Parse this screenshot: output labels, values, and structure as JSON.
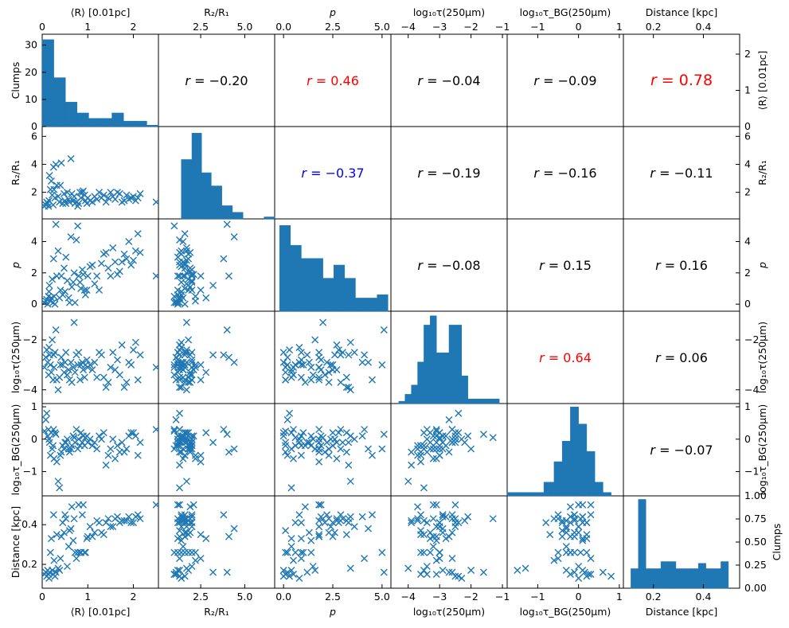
{
  "chart_data": {
    "type": "pairplot",
    "variables": [
      {
        "key": "R",
        "label_top": "⟨R⟩ [0.01pc]",
        "label_bottom": "⟨R⟩ [0.01pc]",
        "label_left": "",
        "label_right": "⟨R⟩ [0.01pc]",
        "range": [
          0,
          2.55
        ],
        "ticks": [
          0,
          1,
          2
        ],
        "tick_labels": [
          "0",
          "1",
          "2"
        ]
      },
      {
        "key": "R2R1",
        "label_top": "R₂/R₁",
        "label_bottom": "R₂/R₁",
        "label_left": "R₂/R₁",
        "label_right": "R₂/R₁",
        "range": [
          0.1,
          6.7
        ],
        "ticks": [
          2.5,
          5.0
        ],
        "tick_labels": [
          "2.5",
          "5.0"
        ],
        "y_ticks": [
          2,
          4,
          6
        ],
        "y_tick_labels": [
          "2",
          "4",
          "6"
        ]
      },
      {
        "key": "p",
        "label_top": "p",
        "label_bottom": "p",
        "label_left": "p",
        "label_right": "p",
        "range": [
          -0.45,
          5.45
        ],
        "ticks": [
          0,
          2.5,
          5
        ],
        "tick_labels": [
          "0.0",
          "2.5",
          "5.0"
        ],
        "y_ticks": [
          0,
          2,
          4
        ],
        "y_tick_labels": [
          "0",
          "2",
          "4"
        ]
      },
      {
        "key": "tau",
        "label_top": "log₁₀τ(250µm)",
        "label_bottom": "log₁₀τ(250µm)",
        "label_left": "log₁₀τ(250µm)",
        "label_right": "log₁₀τ(250µm)",
        "range": [
          -4.55,
          -0.85
        ],
        "ticks": [
          -4,
          -3,
          -2,
          -1
        ],
        "tick_labels": [
          "−4",
          "−3",
          "−2",
          "−1"
        ],
        "y_ticks": [
          -4,
          -2
        ],
        "y_tick_labels": [
          "−4",
          "−2"
        ]
      },
      {
        "key": "taubg",
        "label_top": "log₁₀τ_BG(250µm)",
        "label_bottom": "log₁₀τ_BG(250µm)",
        "label_left": "log₁₀τ_BG(250µm)",
        "label_right": "log₁₀τ_BG(250µm)",
        "range": [
          -1.75,
          1.1
        ],
        "ticks": [
          -1,
          0,
          1
        ],
        "tick_labels": [
          "−1",
          "0",
          "1"
        ],
        "y_ticks": [
          -1,
          0,
          1
        ],
        "y_tick_labels": [
          "−1",
          "0",
          "1"
        ]
      },
      {
        "key": "dist",
        "label_top": "Distance [kpc]",
        "label_bottom": "Distance [kpc]",
        "label_left": "Distance [kpc]",
        "label_right": "",
        "range": [
          0.08,
          0.545
        ],
        "ticks": [
          0.2,
          0.4
        ],
        "tick_labels": [
          "0.2",
          "0.4"
        ],
        "y_ticks": [
          0.2,
          0.4
        ],
        "y_tick_labels": [
          "0.2",
          "0.4"
        ]
      }
    ],
    "first_row_y": {
      "label_left": "Clumps",
      "range": [
        0,
        34
      ],
      "ticks": [
        0,
        10,
        20,
        30
      ],
      "tick_labels": [
        "0",
        "10",
        "20",
        "30"
      ],
      "right_ticks": [
        0,
        1,
        2
      ],
      "right_tick_labels": [
        "0",
        "1",
        "2"
      ]
    },
    "last_row_right": {
      "label_right": "Clumps",
      "range": [
        0,
        1
      ],
      "ticks": [
        0,
        0.25,
        0.5,
        0.75,
        1.0
      ],
      "tick_labels": [
        "0.00",
        "0.25",
        "0.50",
        "0.75",
        "1.00"
      ]
    },
    "correlations": [
      {
        "row": 0,
        "col": 1,
        "r": "−0.20",
        "color": "#000000",
        "big": false
      },
      {
        "row": 0,
        "col": 2,
        "r": "0.46",
        "color": "#ff0000",
        "big": false
      },
      {
        "row": 0,
        "col": 3,
        "r": "−0.04",
        "color": "#000000",
        "big": false
      },
      {
        "row": 0,
        "col": 4,
        "r": "−0.09",
        "color": "#000000",
        "big": false
      },
      {
        "row": 0,
        "col": 5,
        "r": "0.78",
        "color": "#ff0000",
        "big": true
      },
      {
        "row": 1,
        "col": 2,
        "r": "−0.37",
        "color": "#0000ff",
        "big": false
      },
      {
        "row": 1,
        "col": 3,
        "r": "−0.19",
        "color": "#000000",
        "big": false
      },
      {
        "row": 1,
        "col": 4,
        "r": "−0.16",
        "color": "#000000",
        "big": false
      },
      {
        "row": 1,
        "col": 5,
        "r": "−0.11",
        "color": "#000000",
        "big": false
      },
      {
        "row": 2,
        "col": 3,
        "r": "−0.08",
        "color": "#000000",
        "big": false
      },
      {
        "row": 2,
        "col": 4,
        "r": "0.15",
        "color": "#000000",
        "big": false
      },
      {
        "row": 2,
        "col": 5,
        "r": "0.16",
        "color": "#000000",
        "big": false
      },
      {
        "row": 3,
        "col": 4,
        "r": "0.64",
        "color": "#ff0000",
        "big": false
      },
      {
        "row": 3,
        "col": 5,
        "r": "0.06",
        "color": "#000000",
        "big": false
      },
      {
        "row": 4,
        "col": 5,
        "r": "−0.07",
        "color": "#000000",
        "big": false
      }
    ],
    "histograms": [
      {
        "var": "R",
        "bins": [
          0,
          0.255,
          0.51,
          0.765,
          1.02,
          1.275,
          1.53,
          1.785,
          2.04,
          2.295,
          2.55
        ],
        "counts": [
          32,
          18,
          9,
          5,
          3,
          3,
          5,
          2,
          2,
          0.5
        ],
        "ymax": 34
      },
      {
        "var": "R2R1",
        "bins": [
          0.1,
          0.75,
          1.4,
          2.0,
          2.55,
          3.1,
          3.7,
          4.3,
          4.9,
          5.5,
          6.1,
          6.7
        ],
        "counts": [
          0,
          0,
          9,
          13,
          7,
          5,
          2,
          1,
          0,
          0,
          0.3
        ],
        "ymax": 14
      },
      {
        "var": "p",
        "bins": [
          -0.2,
          0.35,
          0.9,
          1.45,
          2.0,
          2.55,
          3.1,
          3.65,
          4.2,
          4.75,
          5.3
        ],
        "counts": [
          13,
          10,
          8,
          8,
          5,
          7,
          5,
          2,
          2,
          2.5
        ],
        "ymax": 14
      },
      {
        "var": "tau",
        "bins": [
          -4.3,
          -4.1,
          -3.9,
          -3.7,
          -3.5,
          -3.3,
          -3.1,
          -2.9,
          -2.7,
          -2.5,
          -2.3,
          -2.1,
          -1.9,
          -1.7,
          -1.5,
          -1.3,
          -1.1
        ],
        "counts": [
          0.5,
          2,
          4,
          9,
          17,
          19,
          11,
          11,
          17,
          17,
          6,
          1,
          1,
          1,
          1,
          1
        ],
        "ymax": 20
      },
      {
        "var": "taubg",
        "bins": [
          -1.75,
          -1.45,
          -1.15,
          -0.85,
          -0.6,
          -0.4,
          -0.2,
          0.0,
          0.2,
          0.4,
          0.6,
          0.8,
          1.1
        ],
        "counts": [
          1,
          1,
          1,
          4,
          10,
          16,
          26,
          21,
          13,
          4,
          1,
          0
        ],
        "ymax": 27
      },
      {
        "var": "dist",
        "bins": [
          0.11,
          0.14,
          0.17,
          0.2,
          0.23,
          0.26,
          0.29,
          0.32,
          0.35,
          0.38,
          0.41,
          0.44,
          0.47,
          0.5
        ],
        "counts": [
          0.22,
          1.0,
          0.22,
          0.22,
          0.3,
          0.3,
          0.22,
          0.22,
          0.22,
          0.28,
          0.22,
          0.22,
          0.3,
          0.09
        ],
        "ymax": 1.04
      }
    ],
    "points": [
      [
        0.05,
        1.0,
        0.1,
        -3.1,
        0.25,
        0.15
      ],
      [
        0.08,
        1.1,
        0.2,
        -2.7,
        0.6,
        0.16
      ],
      [
        0.1,
        1.3,
        0.3,
        -2.4,
        0.8,
        0.14
      ],
      [
        0.12,
        1.2,
        0.0,
        -2.9,
        0.1,
        0.17
      ],
      [
        0.14,
        1.0,
        0.5,
        -3.4,
        0.3,
        0.15
      ],
      [
        0.15,
        1.4,
        0.8,
        -2.3,
        0.0,
        0.13
      ],
      [
        0.16,
        3.2,
        1.2,
        -2.6,
        -0.1,
        0.16
      ],
      [
        0.18,
        2.2,
        0.2,
        -3.0,
        -0.5,
        0.26
      ],
      [
        0.2,
        2.8,
        0.4,
        -3.3,
        0.2,
        0.33
      ],
      [
        0.22,
        1.8,
        1.6,
        -2.0,
        -0.3,
        0.17
      ],
      [
        0.24,
        1.1,
        0.1,
        -3.6,
        -0.2,
        0.15
      ],
      [
        0.25,
        3.8,
        2.9,
        -2.6,
        0.3,
        0.45
      ],
      [
        0.26,
        2.2,
        0.5,
        -3.1,
        -0.6,
        0.22
      ],
      [
        0.28,
        1.6,
        0.0,
        -2.5,
        0.2,
        0.14
      ],
      [
        0.3,
        4.0,
        5.1,
        -1.6,
        0.15,
        0.16
      ],
      [
        0.32,
        2.5,
        1.8,
        -3.6,
        -0.7,
        0.35
      ],
      [
        0.35,
        1.7,
        3.4,
        -4.0,
        -1.3,
        0.18
      ],
      [
        0.38,
        1.3,
        0.4,
        -3.5,
        -1.5,
        0.17
      ],
      [
        0.4,
        2.5,
        0.9,
        -3.0,
        -0.5,
        0.23
      ],
      [
        0.42,
        4.1,
        1.8,
        -2.7,
        -0.4,
        0.34
      ],
      [
        0.45,
        1.2,
        0.6,
        -3.0,
        -0.2,
        0.41
      ],
      [
        0.48,
        1.9,
        2.3,
        -3.3,
        -0.3,
        0.36
      ],
      [
        0.5,
        1.4,
        0.8,
        -2.9,
        -0.1,
        0.45
      ],
      [
        0.52,
        1.2,
        3.0,
        -2.5,
        -0.1,
        0.43
      ],
      [
        0.55,
        2.0,
        1.5,
        -3.4,
        0.0,
        0.19
      ],
      [
        0.58,
        1.5,
        0.4,
        -3.2,
        -0.3,
        0.29
      ],
      [
        0.6,
        1.3,
        0.1,
        -3.6,
        -0.4,
        0.37
      ],
      [
        0.63,
        4.4,
        4.3,
        -2.9,
        -0.3,
        0.38
      ],
      [
        0.65,
        1.9,
        1.1,
        -3.7,
        -0.2,
        0.49
      ],
      [
        0.68,
        1.4,
        1.4,
        -3.1,
        0.1,
        0.32
      ],
      [
        0.7,
        1.7,
        2.0,
        -1.3,
        0.05,
        0.43
      ],
      [
        0.72,
        1.2,
        0.1,
        -3.3,
        -0.1,
        0.26
      ],
      [
        0.75,
        1.3,
        4.1,
        -2.6,
        0.3,
        0.23
      ],
      [
        0.78,
        1.0,
        5.0,
        -3.0,
        -0.3,
        0.26
      ],
      [
        0.8,
        1.2,
        1.8,
        -2.5,
        0.0,
        0.5
      ],
      [
        0.83,
        2.0,
        1.4,
        -3.6,
        -0.2,
        0.26
      ],
      [
        0.85,
        1.6,
        1.0,
        -3.0,
        0.2,
        0.26
      ],
      [
        0.88,
        2.0,
        2.2,
        -2.9,
        -0.1,
        0.45
      ],
      [
        0.9,
        2.1,
        1.9,
        -3.2,
        0.1,
        0.5
      ],
      [
        0.93,
        1.8,
        0.9,
        -3.5,
        -0.2,
        0.26
      ],
      [
        0.95,
        1.4,
        0.6,
        -3.0,
        0.05,
        0.26
      ],
      [
        0.98,
        1.2,
        0.9,
        -2.8,
        0.1,
        0.33
      ],
      [
        1.0,
        1.6,
        1.8,
        -3.1,
        -0.1,
        0.34
      ],
      [
        1.05,
        1.4,
        2.4,
        -3.0,
        0.0,
        0.39
      ],
      [
        1.1,
        1.3,
        2.5,
        -3.2,
        -0.2,
        0.34
      ],
      [
        1.15,
        1.7,
        1.3,
        -2.9,
        -0.1,
        0.36
      ],
      [
        1.2,
        1.5,
        1.8,
        -3.5,
        -0.3,
        0.42
      ],
      [
        1.25,
        2.0,
        0.9,
        -2.5,
        0.1,
        0.41
      ],
      [
        1.3,
        1.6,
        2.6,
        -2.6,
        0.0,
        0.36
      ],
      [
        1.35,
        1.8,
        3.2,
        -3.5,
        0.2,
        0.35
      ],
      [
        1.4,
        1.3,
        3.3,
        -3.9,
        -0.8,
        0.41
      ],
      [
        1.45,
        1.6,
        2.3,
        -3.7,
        -0.5,
        0.43
      ],
      [
        1.5,
        2.0,
        1.8,
        -3.1,
        -0.3,
        0.39
      ],
      [
        1.55,
        1.7,
        3.6,
        -2.5,
        0.0,
        0.39
      ],
      [
        1.6,
        1.5,
        2.7,
        -3.2,
        -0.6,
        0.43
      ],
      [
        1.65,
        2.0,
        1.9,
        -2.8,
        -0.2,
        0.44
      ],
      [
        1.7,
        1.9,
        2.1,
        -3.4,
        -0.4,
        0.41
      ],
      [
        1.75,
        1.3,
        2.7,
        -2.2,
        -0.1,
        0.42
      ],
      [
        1.8,
        1.4,
        3.2,
        -3.9,
        -0.4,
        0.42
      ],
      [
        1.85,
        1.8,
        2.9,
        -3.7,
        -0.3,
        0.42
      ],
      [
        1.9,
        1.5,
        4.0,
        -2.9,
        0.1,
        0.44
      ],
      [
        1.95,
        1.6,
        2.5,
        -3.0,
        0.2,
        0.41
      ],
      [
        2.0,
        1.7,
        2.8,
        -2.4,
        0.2,
        0.41
      ],
      [
        2.05,
        1.4,
        3.4,
        -2.1,
        0.1,
        0.44
      ],
      [
        2.1,
        1.6,
        4.5,
        -3.6,
        -0.5,
        0.45
      ],
      [
        2.15,
        1.9,
        3.3,
        -2.6,
        -0.1,
        0.43
      ],
      [
        2.5,
        1.3,
        1.8,
        -3.1,
        0.3,
        0.5
      ]
    ]
  }
}
